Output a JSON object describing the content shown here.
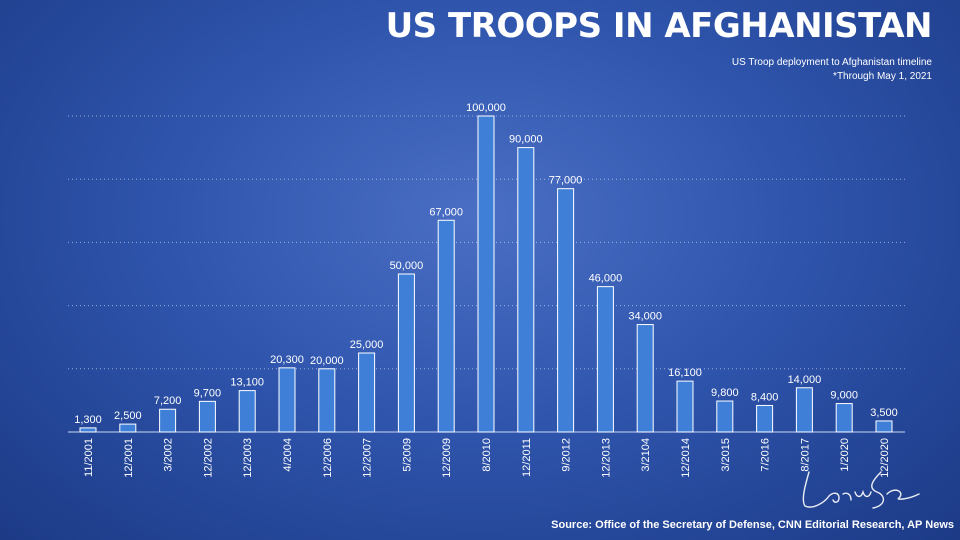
{
  "title": "US TROOPS IN AFGHANISTAN",
  "subtitle_line1": "US Troop deployment to Afghanistan timeline",
  "subtitle_line2": "*Through May 1, 2021",
  "source": "Source: Office of the Secretary of Defense, CNN Editorial Research, AP News",
  "colors": {
    "bar": "#3f7fd8",
    "bar_outline": "#ffffff",
    "background": "#2f55ad"
  },
  "chart_data": {
    "type": "bar",
    "categories": [
      "11/2001",
      "12/2001",
      "3/2002",
      "12/2002",
      "12/2003",
      "4/2004",
      "12/2006",
      "12/2007",
      "5/2009",
      "12/2009",
      "8/2010",
      "12/2011",
      "9/2012",
      "12/2013",
      "3/2104",
      "12/2014",
      "3/2015",
      "7/2016",
      "8/2017",
      "1/2020",
      "12/2020"
    ],
    "values": [
      1300,
      2500,
      7200,
      9700,
      13100,
      20300,
      20000,
      25000,
      50000,
      67000,
      100000,
      90000,
      77000,
      46000,
      34000,
      16100,
      9800,
      8400,
      14000,
      9000,
      3500
    ],
    "value_labels": [
      "1,300",
      "2,500",
      "7,200",
      "9,700",
      "13,100",
      "20,300",
      "20,000",
      "25,000",
      "50,000",
      "67,000",
      "100,000",
      "90,000",
      "77,000",
      "46,000",
      "34,000",
      "16,100",
      "9,800",
      "8,400",
      "14,000",
      "9,000",
      "3,500"
    ],
    "ylim": [
      0,
      100000
    ],
    "grid": true,
    "xlabel": "",
    "ylabel": ""
  }
}
